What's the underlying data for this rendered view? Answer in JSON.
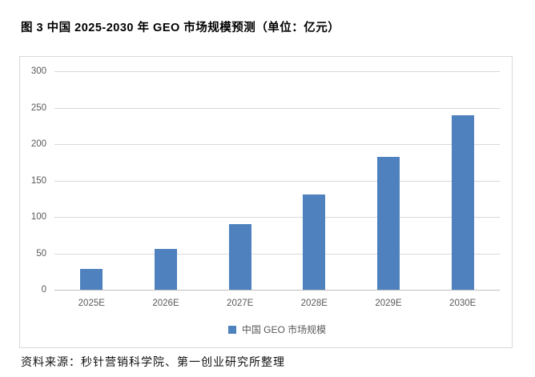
{
  "figure": {
    "title": "图 3 中国 2025-2030 年 GEO 市场规模预测（单位：亿元）",
    "source": "资料来源：秒针营销科学院、第一创业研究所整理"
  },
  "legend": {
    "label": "中国 GEO 市场规模"
  },
  "colors": {
    "bar": "#4E81BD",
    "gridline": "#D9D9D9",
    "axis_line": "#BFBFBF",
    "tick_label": "#595959",
    "legend_text": "#595959",
    "frame_border": "#D9D9D9",
    "title_text": "#000000"
  },
  "chart_data": {
    "type": "bar",
    "title": "中国 2025-2030 年 GEO 市场规模预测",
    "unit": "亿元",
    "categories": [
      "2025E",
      "2026E",
      "2027E",
      "2028E",
      "2029E",
      "2030E"
    ],
    "series": [
      {
        "name": "中国 GEO 市场规模",
        "values": [
          29,
          56,
          90,
          131,
          182,
          240
        ]
      }
    ],
    "xlabel": "",
    "ylabel": "",
    "ylim": [
      0,
      300
    ],
    "yticks": [
      0,
      50,
      100,
      150,
      200,
      250,
      300
    ],
    "grid": true,
    "legend_position": "bottom-center"
  }
}
